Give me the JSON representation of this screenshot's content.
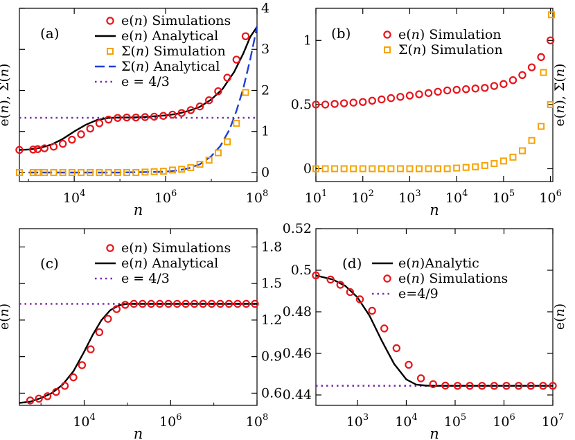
{
  "chart_data": [
    {
      "panel": "(a)",
      "type": "line",
      "xscale": "log",
      "xlim_exp": [
        2.8,
        8
      ],
      "xticks": [
        {
          "exp": 4,
          "base": "10",
          "sup": "4"
        },
        {
          "exp": 6,
          "base": "10",
          "sup": "6"
        },
        {
          "exp": 8,
          "base": "10",
          "sup": "8"
        }
      ],
      "xlabel": "n",
      "ylabel": "e(n),  Σ(n)",
      "ylim": [
        -0.22,
        4.0
      ],
      "yticks_right": [
        "0",
        "1",
        "2",
        "3",
        "4"
      ],
      "legend": [
        {
          "label": "e(n) Simulations",
          "marker": "circle",
          "color": "#e8141b"
        },
        {
          "label": "e(n) Analytical",
          "line": "solid",
          "color": "#000000"
        },
        {
          "label": "Σ(n) Simulation",
          "marker": "square",
          "color": "#f5a300"
        },
        {
          "label": "Σ(n) Analytical",
          "line": "dashed",
          "color": "#1f3fd6"
        },
        {
          "label": "e = 4/3",
          "line": "dotted",
          "color": "#7b2aa8"
        }
      ],
      "reference_line": 1.333,
      "series": [
        {
          "name": "e(n) Analytical",
          "x_exp": [
            2.8,
            3.0,
            3.25,
            3.5,
            3.75,
            4.0,
            4.25,
            4.5,
            4.75,
            5.0,
            5.25,
            5.5,
            5.75,
            6.0,
            6.25,
            6.5,
            6.75,
            7.0,
            7.25,
            7.5,
            7.7,
            7.85,
            8.0
          ],
          "values": [
            0.55,
            0.56,
            0.6,
            0.68,
            0.82,
            1.0,
            1.16,
            1.28,
            1.33,
            1.34,
            1.34,
            1.35,
            1.37,
            1.39,
            1.43,
            1.5,
            1.6,
            1.78,
            2.04,
            2.45,
            2.9,
            3.3,
            3.55
          ]
        },
        {
          "name": "e(n) Simulations",
          "x_exp": [
            2.8,
            3.1,
            3.2,
            3.35,
            3.55,
            3.75,
            3.95,
            4.15,
            4.35,
            4.55,
            4.75,
            4.95,
            5.15,
            5.35,
            5.55,
            5.75,
            5.95,
            6.15,
            6.35,
            6.55,
            6.75,
            6.95,
            7.15,
            7.35,
            7.55,
            7.75
          ],
          "values": [
            0.55,
            0.56,
            0.57,
            0.59,
            0.63,
            0.7,
            0.8,
            0.93,
            1.07,
            1.2,
            1.29,
            1.33,
            1.34,
            1.34,
            1.35,
            1.36,
            1.38,
            1.41,
            1.45,
            1.52,
            1.61,
            1.76,
            1.98,
            2.31,
            2.75,
            3.32
          ]
        },
        {
          "name": "Σ(n) Analytical",
          "x_exp": [
            3.0,
            3.5,
            4.0,
            4.5,
            5.0,
            5.5,
            6.0,
            6.25,
            6.5,
            6.75,
            7.0,
            7.2,
            7.4,
            7.55,
            7.7,
            7.85,
            8.0
          ],
          "values": [
            0.0,
            0.0,
            0.0,
            0.0,
            0.0,
            0.01,
            0.02,
            0.05,
            0.1,
            0.2,
            0.4,
            0.65,
            1.05,
            1.5,
            2.05,
            2.75,
            3.55
          ]
        },
        {
          "name": "Σ(n) Simulation",
          "x_exp": [
            2.8,
            3.1,
            3.2,
            3.35,
            3.55,
            3.75,
            3.95,
            4.15,
            4.35,
            4.55,
            4.75,
            4.95,
            5.15,
            5.35,
            5.55,
            5.75,
            5.95,
            6.15,
            6.35,
            6.55,
            6.75,
            6.95,
            7.15,
            7.35,
            7.55,
            7.75
          ],
          "values": [
            0.0,
            0.0,
            0.0,
            0.0,
            0.0,
            0.0,
            0.0,
            0.0,
            0.0,
            0.0,
            0.0,
            0.0,
            0.0,
            0.0,
            0.01,
            0.02,
            0.03,
            0.06,
            0.08,
            0.12,
            0.2,
            0.3,
            0.48,
            0.75,
            1.2,
            1.95
          ]
        }
      ]
    },
    {
      "panel": "(b)",
      "type": "scatter",
      "xscale": "log",
      "xlim_exp": [
        1,
        6.05
      ],
      "xticks": [
        {
          "exp": 1,
          "base": "10",
          "sup": "1"
        },
        {
          "exp": 2,
          "base": "10",
          "sup": "2"
        },
        {
          "exp": 3,
          "base": "10",
          "sup": "3"
        },
        {
          "exp": 4,
          "base": "10",
          "sup": "4"
        },
        {
          "exp": 5,
          "base": "10",
          "sup": "5"
        },
        {
          "exp": 6,
          "base": "10",
          "sup": "6"
        }
      ],
      "xlabel": "n",
      "ylabel": "e(n),  Σ(n)",
      "ylim": [
        -0.1,
        1.25
      ],
      "yticks_left": [
        "0",
        "0.5",
        "1"
      ],
      "legend": [
        {
          "label": "e(n) Simulation",
          "marker": "circle",
          "color": "#e8141b"
        },
        {
          "label": "Σ(n) Simulation",
          "marker": "square",
          "color": "#f5a300"
        }
      ],
      "series": [
        {
          "name": "e(n) Simulation",
          "x_exp": [
            1.0,
            1.2,
            1.4,
            1.6,
            1.8,
            2.0,
            2.2,
            2.4,
            2.6,
            2.8,
            3.0,
            3.2,
            3.4,
            3.6,
            3.8,
            4.0,
            4.2,
            4.4,
            4.6,
            4.8,
            5.0,
            5.2,
            5.4,
            5.6,
            5.8,
            6.0
          ],
          "values": [
            0.5,
            0.5,
            0.505,
            0.51,
            0.515,
            0.52,
            0.53,
            0.54,
            0.55,
            0.56,
            0.57,
            0.58,
            0.59,
            0.6,
            0.61,
            0.615,
            0.62,
            0.625,
            0.63,
            0.645,
            0.66,
            0.69,
            0.73,
            0.79,
            0.87,
            1.0
          ]
        },
        {
          "name": "Σ(n) Simulation",
          "x_exp": [
            1.0,
            1.2,
            1.4,
            1.6,
            1.8,
            2.0,
            2.2,
            2.4,
            2.6,
            2.8,
            3.0,
            3.2,
            3.4,
            3.6,
            3.8,
            4.0,
            4.2,
            4.4,
            4.6,
            4.8,
            5.0,
            5.2,
            5.4,
            5.6,
            5.8,
            6.0
          ],
          "values": [
            0.0,
            0.0,
            0.0,
            0.0,
            0.0,
            0.0,
            0.0,
            0.0,
            0.0,
            0.0,
            0.0,
            0.0,
            0.0,
            0.0,
            0.0,
            0.005,
            0.01,
            0.015,
            0.025,
            0.04,
            0.06,
            0.09,
            0.14,
            0.22,
            0.33,
            0.5
          ]
        }
      ],
      "extra_points": {
        "Σ(n) Simulation": [
          {
            "x_exp": 5.85,
            "value": 0.75
          },
          {
            "x_exp": 6.05,
            "value": 1.2
          }
        ]
      }
    },
    {
      "panel": "(c)",
      "type": "line",
      "xscale": "log",
      "xlim_exp": [
        2.5,
        8
      ],
      "xticks": [
        {
          "exp": 4,
          "base": "10",
          "sup": "4"
        },
        {
          "exp": 6,
          "base": "10",
          "sup": "6"
        },
        {
          "exp": 8,
          "base": "10",
          "sup": "8"
        }
      ],
      "xlabel": "n",
      "ylabel": "e(n)",
      "ylim": [
        0.5,
        1.95
      ],
      "yticks_right": [
        "0.6",
        "0.9",
        "1.2",
        "1.5",
        "1.8"
      ],
      "legend": [
        {
          "label": "e(n) Simulations",
          "marker": "circle",
          "color": "#e8141b"
        },
        {
          "label": "e(n) Analytical",
          "line": "solid",
          "color": "#000000"
        },
        {
          "label": "e = 4/3",
          "line": "dotted",
          "color": "#7b2aa8"
        }
      ],
      "reference_line": 1.333,
      "series": [
        {
          "name": "e(n) Analytical",
          "x_exp": [
            2.5,
            2.75,
            3.0,
            3.25,
            3.5,
            3.75,
            4.0,
            4.2,
            4.4,
            4.6,
            4.8,
            5.0,
            5.5,
            6.0,
            7.0,
            8.0
          ],
          "values": [
            0.52,
            0.53,
            0.56,
            0.6,
            0.67,
            0.78,
            0.94,
            1.08,
            1.2,
            1.28,
            1.32,
            1.333,
            1.333,
            1.333,
            1.333,
            1.333
          ]
        },
        {
          "name": "e(n) Simulations",
          "x_exp": [
            2.75,
            2.95,
            3.15,
            3.35,
            3.55,
            3.75,
            3.95,
            4.15,
            4.35,
            4.55,
            4.75,
            4.95,
            5.15,
            5.35,
            5.55,
            5.75,
            5.95,
            6.15,
            6.35,
            6.55,
            6.75,
            6.95,
            7.15,
            7.35,
            7.55,
            7.75,
            7.95
          ],
          "values": [
            0.54,
            0.555,
            0.575,
            0.61,
            0.66,
            0.73,
            0.83,
            0.96,
            1.1,
            1.21,
            1.29,
            1.325,
            1.333,
            1.333,
            1.333,
            1.333,
            1.333,
            1.333,
            1.333,
            1.333,
            1.333,
            1.333,
            1.333,
            1.333,
            1.333,
            1.333,
            1.333
          ]
        }
      ]
    },
    {
      "panel": "(d)",
      "type": "line",
      "xscale": "log",
      "xlim_exp": [
        2.15,
        7
      ],
      "xticks": [
        {
          "exp": 3,
          "base": "10",
          "sup": "3"
        },
        {
          "exp": 4,
          "base": "10",
          "sup": "4"
        },
        {
          "exp": 5,
          "base": "10",
          "sup": "5"
        },
        {
          "exp": 6,
          "base": "10",
          "sup": "6"
        },
        {
          "exp": 7,
          "base": "10",
          "sup": "7"
        }
      ],
      "xlabel": "n",
      "ylabel": "e(n)",
      "ylim": [
        0.435,
        0.52
      ],
      "yticks_left": [
        "0.44",
        "0.46",
        "0.48",
        "0.5",
        "0.52"
      ],
      "legend": [
        {
          "label": "e(n)Analytic",
          "line": "solid",
          "color": "#000000"
        },
        {
          "label": "e(n) Simulations",
          "marker": "circle",
          "color": "#e8141b"
        },
        {
          "label": "e=4/9",
          "line": "dotted",
          "color": "#7b2aa8"
        }
      ],
      "reference_line": 0.4444,
      "series": [
        {
          "name": "e(n)Analytic",
          "x_exp": [
            2.15,
            2.5,
            2.75,
            3.0,
            3.25,
            3.5,
            3.75,
            4.0,
            4.2,
            4.4,
            4.6,
            5.0,
            6.0,
            7.0
          ],
          "values": [
            0.4975,
            0.4955,
            0.4925,
            0.487,
            0.478,
            0.466,
            0.455,
            0.4475,
            0.445,
            0.4445,
            0.4444,
            0.4444,
            0.4444,
            0.4444
          ]
        },
        {
          "name": "e(n) Simulations",
          "x_exp": [
            2.15,
            2.45,
            2.65,
            2.85,
            3.05,
            3.3,
            3.55,
            3.8,
            4.05,
            4.3,
            4.55,
            4.8,
            5.05,
            5.3,
            5.55,
            5.8,
            6.05,
            6.3,
            6.55,
            6.8,
            7.0
          ],
          "values": [
            0.4975,
            0.4955,
            0.493,
            0.4895,
            0.486,
            0.4805,
            0.472,
            0.4625,
            0.4545,
            0.448,
            0.4452,
            0.4445,
            0.4444,
            0.4444,
            0.4444,
            0.4444,
            0.4444,
            0.4444,
            0.4444,
            0.4444,
            0.4444
          ]
        }
      ]
    }
  ],
  "panels_text": {
    "a": {
      "label": "(a)",
      "legend": [
        "e(n) Simulations",
        "e(n) Analytical",
        "Σ(n) Simulation",
        "Σ(n) Analytical",
        "e = 4/3"
      ],
      "xlabel": "n",
      "ylabel": "e(n),  Σ(n)"
    },
    "b": {
      "label": "(b)",
      "legend": [
        "e(n) Simulation",
        "Σ(n) Simulation"
      ],
      "xlabel": "n",
      "ylabel": "e(n),  Σ(n)"
    },
    "c": {
      "label": "(c)",
      "legend": [
        "e(n) Simulations",
        "e(n) Analytical",
        "e = 4/3"
      ],
      "xlabel": "n",
      "ylabel": "e(n)"
    },
    "d": {
      "label": "(d)",
      "legend": [
        "e(n)Analytic",
        "e(n) Simulations",
        "e=4/9"
      ],
      "xlabel": "n",
      "ylabel": "e(n)"
    }
  },
  "colors": {
    "red": "#e8141b",
    "black": "#000000",
    "orange": "#f5a300",
    "blue": "#1f3fd6",
    "purple": "#7b2aa8"
  }
}
